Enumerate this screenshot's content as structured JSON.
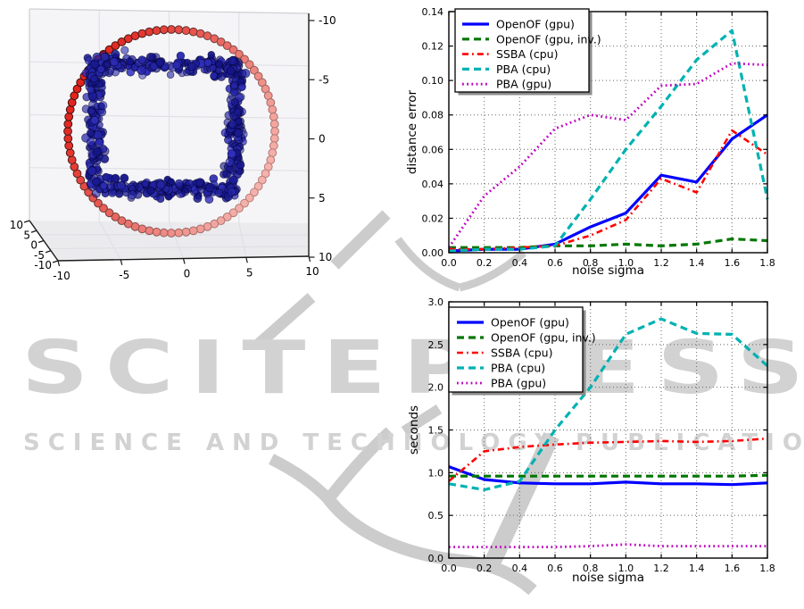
{
  "watermark": {
    "title": "SCITEPRESS",
    "subtitle": "SCIENCE AND TECHNOLOGY PUBLICATIONS",
    "color": "#d2d2d2"
  },
  "legend_labels": [
    "OpenOF (gpu)",
    "OpenOF (gpu, inv.)",
    "SSBA (cpu)",
    "PBA (cpu)",
    "PBA (gpu)"
  ],
  "chart_data": [
    {
      "id": "scene3d",
      "type": "scatter",
      "projection": "3d",
      "x_tick_labels": [
        "-10",
        "-5",
        "0",
        "5",
        "10"
      ],
      "y_tick_labels": [
        "10",
        "5",
        "0",
        "-5",
        "-10"
      ],
      "z_tick_labels": [
        "-10",
        "-5",
        "0",
        "5",
        "10"
      ],
      "x_range": [
        -10,
        10
      ],
      "y_range": [
        -10,
        10
      ],
      "z_range": [
        -10,
        10
      ],
      "series": [
        {
          "name": "camera ring",
          "shape": "circle",
          "points": 88,
          "radius": 7,
          "color_near": "#e1231c",
          "color_far": "#f4b2ac"
        },
        {
          "name": "noisy square point cloud",
          "shape": "square-ring",
          "points": 620,
          "half_side": 6,
          "noise_sigma": 0.45,
          "color": "#1414b4"
        }
      ]
    },
    {
      "id": "distance_error",
      "type": "line",
      "xlabel": "noise sigma",
      "ylabel": "distance error",
      "xlim": [
        0,
        1.8
      ],
      "ylim": [
        0,
        0.14
      ],
      "x": [
        0.0,
        0.2,
        0.4,
        0.6,
        0.8,
        1.0,
        1.2,
        1.4,
        1.6,
        1.8
      ],
      "x_tick_labels": [
        "0.0",
        "0.2",
        "0.4",
        "0.6",
        "0.8",
        "1.0",
        "1.2",
        "1.4",
        "1.6",
        "1.8"
      ],
      "y_ticks": [
        0,
        0.02,
        0.04,
        0.06,
        0.08,
        0.1,
        0.12,
        0.14
      ],
      "y_tick_labels": [
        "0.00",
        "0.02",
        "0.04",
        "0.06",
        "0.08",
        "0.10",
        "0.12",
        "0.14"
      ],
      "grid": true,
      "legend_position": "upper left",
      "series": [
        {
          "label": "OpenOF (gpu)",
          "color": "#0000ff",
          "style": "solid",
          "values": [
            0.001,
            0.002,
            0.002,
            0.005,
            0.015,
            0.023,
            0.045,
            0.041,
            0.066,
            0.08
          ]
        },
        {
          "label": "OpenOF (gpu, inv.)",
          "color": "#007700",
          "style": "dashed",
          "values": [
            0.003,
            0.003,
            0.003,
            0.004,
            0.004,
            0.005,
            0.004,
            0.005,
            0.008,
            0.007
          ]
        },
        {
          "label": "SSBA (cpu)",
          "color": "#ff0000",
          "style": "dashdot",
          "values": [
            0.002,
            0.002,
            0.003,
            0.004,
            0.01,
            0.019,
            0.043,
            0.035,
            0.071,
            0.057
          ]
        },
        {
          "label": "PBA (cpu)",
          "color": "#00b2b2",
          "style": "dashed",
          "values": [
            0.001,
            0.002,
            0.002,
            0.004,
            0.031,
            0.06,
            0.085,
            0.112,
            0.129,
            0.031
          ]
        },
        {
          "label": "PBA (gpu)",
          "color": "#bf00bf",
          "style": "dotted",
          "values": [
            0.003,
            0.033,
            0.05,
            0.072,
            0.08,
            0.077,
            0.097,
            0.098,
            0.11,
            0.109
          ]
        }
      ]
    },
    {
      "id": "runtime",
      "type": "line",
      "xlabel": "noise sigma",
      "ylabel": "seconds",
      "xlim": [
        0,
        1.8
      ],
      "ylim": [
        0,
        3.0
      ],
      "x": [
        0.0,
        0.2,
        0.4,
        0.6,
        0.8,
        1.0,
        1.2,
        1.4,
        1.6,
        1.8
      ],
      "x_tick_labels": [
        "0.0",
        "0.2",
        "0.4",
        "0.6",
        "0.8",
        "1.0",
        "1.2",
        "1.4",
        "1.6",
        "1.8"
      ],
      "y_ticks": [
        0,
        0.5,
        1.0,
        1.5,
        2.0,
        2.5,
        3.0
      ],
      "y_tick_labels": [
        "0.0",
        "0.5",
        "1.0",
        "1.5",
        "2.0",
        "2.5",
        "3.0"
      ],
      "grid": true,
      "legend_position": "upper left",
      "series": [
        {
          "label": "OpenOF (gpu)",
          "color": "#0000ff",
          "style": "solid",
          "values": [
            1.07,
            0.92,
            0.88,
            0.87,
            0.87,
            0.89,
            0.87,
            0.87,
            0.86,
            0.88
          ]
        },
        {
          "label": "OpenOF (gpu, inv.)",
          "color": "#007700",
          "style": "dashed",
          "values": [
            0.96,
            0.96,
            0.96,
            0.96,
            0.96,
            0.96,
            0.96,
            0.96,
            0.96,
            0.97
          ]
        },
        {
          "label": "SSBA (cpu)",
          "color": "#ff0000",
          "style": "dashdot",
          "values": [
            0.9,
            1.25,
            1.3,
            1.33,
            1.35,
            1.36,
            1.37,
            1.36,
            1.37,
            1.4
          ]
        },
        {
          "label": "PBA (cpu)",
          "color": "#00b2b2",
          "style": "dashed",
          "values": [
            0.87,
            0.8,
            0.9,
            1.5,
            2.0,
            2.62,
            2.8,
            2.63,
            2.62,
            2.25
          ]
        },
        {
          "label": "PBA (gpu)",
          "color": "#bf00bf",
          "style": "dotted",
          "values": [
            0.13,
            0.13,
            0.13,
            0.13,
            0.14,
            0.16,
            0.14,
            0.14,
            0.14,
            0.14
          ]
        }
      ]
    }
  ]
}
